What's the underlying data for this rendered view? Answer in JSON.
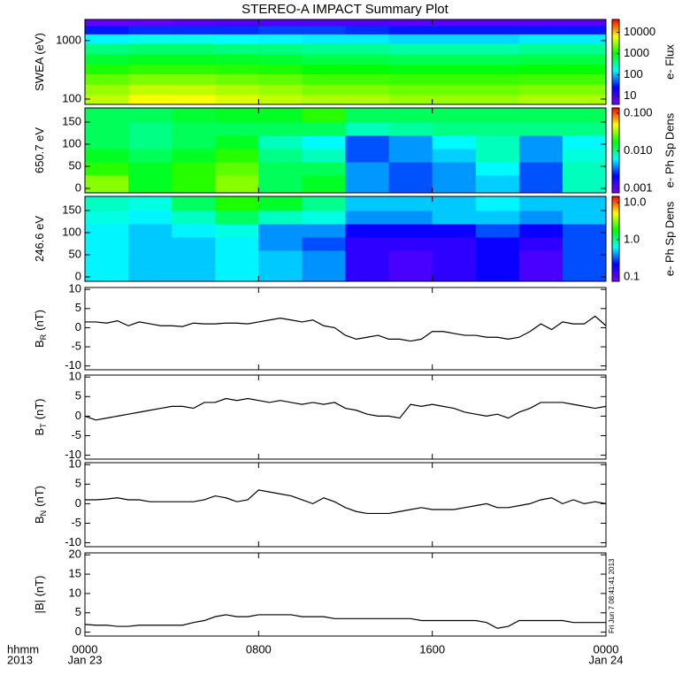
{
  "title": "STEREO-A IMPACT Summary Plot",
  "corner": [
    "hhmm",
    "2013"
  ],
  "timestamp": "Fri Jun  7 08:41:41 2013",
  "xlim": [
    0,
    24
  ],
  "xticks": [
    {
      "value": 0,
      "label": "0000"
    },
    {
      "value": 8,
      "label": "0800"
    },
    {
      "value": 16,
      "label": "1600"
    },
    {
      "value": 24,
      "label": "0000"
    }
  ],
  "xdates": [
    {
      "value": 0,
      "label": "Jan 23"
    },
    {
      "value": 24,
      "label": "Jan 24"
    }
  ],
  "time": [
    0,
    0.5,
    1,
    1.5,
    2,
    2.5,
    3,
    3.5,
    4,
    4.5,
    5,
    5.5,
    6,
    6.5,
    7,
    7.5,
    8,
    8.5,
    9,
    9.5,
    10,
    10.5,
    11,
    11.5,
    12,
    12.5,
    13,
    13.5,
    14,
    14.5,
    15,
    15.5,
    16,
    16.5,
    17,
    17.5,
    18,
    18.5,
    19,
    19.5,
    20,
    20.5,
    21,
    21.5,
    22,
    22.5,
    23,
    23.5,
    24
  ],
  "colorscale": [
    "#7f00ff",
    "#0000ff",
    "#00ffff",
    "#00ff00",
    "#ffff00",
    "#ff0000"
  ],
  "chart_data": [
    {
      "type": "heatmap",
      "ylabel": "SWEA (eV)",
      "ylog": true,
      "ylim": [
        81,
        2300
      ],
      "yticks": [
        100,
        1000
      ],
      "zlabel": "e- Flux",
      "zlog": true,
      "zlim": [
        4,
        40000
      ],
      "zticks": [
        10,
        100,
        1000,
        10000
      ],
      "x": [
        0,
        2,
        4,
        6,
        8,
        10,
        12,
        14,
        16,
        18,
        20,
        22,
        24
      ],
      "y": [
        81,
        120,
        180,
        270,
        400,
        600,
        900,
        1300,
        1800,
        2300
      ],
      "z": [
        [
          4000,
          6000,
          6000,
          5000,
          4000,
          3500,
          3500,
          3000,
          3000,
          3000,
          3500,
          3500
        ],
        [
          3000,
          4000,
          4000,
          3500,
          3000,
          2500,
          2500,
          2200,
          2200,
          2200,
          2500,
          2500
        ],
        [
          2000,
          2500,
          2500,
          2200,
          2000,
          1600,
          1600,
          1500,
          1500,
          1500,
          1600,
          1600
        ],
        [
          1200,
          1400,
          1400,
          1300,
          1200,
          1000,
          1000,
          900,
          900,
          900,
          1000,
          1000
        ],
        [
          700,
          800,
          800,
          750,
          700,
          600,
          600,
          550,
          550,
          550,
          600,
          600
        ],
        [
          400,
          450,
          450,
          400,
          400,
          350,
          350,
          300,
          300,
          300,
          350,
          350
        ],
        [
          150,
          180,
          180,
          160,
          150,
          140,
          140,
          120,
          120,
          120,
          140,
          140
        ],
        [
          30,
          35,
          35,
          35,
          40,
          40,
          35,
          30,
          30,
          30,
          30,
          30
        ],
        [
          6,
          6,
          7,
          8,
          8,
          8,
          8,
          7,
          7,
          7,
          7,
          7
        ]
      ]
    },
    {
      "type": "heatmap",
      "ylabel": "650.7 eV",
      "ylog": false,
      "ylim": [
        -10,
        182
      ],
      "yticks": [
        0,
        50,
        100,
        150
      ],
      "zlabel": "e- Ph Sp Dens",
      "zlog": true,
      "zlim": [
        0.00076,
        0.138
      ],
      "zticks": [
        {
          "value": 0.001,
          "label": "0.001"
        },
        {
          "value": 0.01,
          "label": "0.010"
        },
        {
          "value": 0.1,
          "label": "0.100"
        }
      ],
      "x": [
        0,
        2,
        4,
        6,
        8,
        10,
        12,
        14,
        16,
        18,
        20,
        22,
        24
      ],
      "y": [
        -10,
        30,
        60,
        90,
        120,
        150,
        182
      ],
      "z": [
        [
          0.03,
          0.015,
          0.02,
          0.03,
          0.012,
          0.015,
          0.004,
          0.003,
          0.004,
          0.005,
          0.003,
          0.008
        ],
        [
          0.02,
          0.015,
          0.02,
          0.025,
          0.012,
          0.012,
          0.004,
          0.003,
          0.004,
          0.006,
          0.003,
          0.008
        ],
        [
          0.015,
          0.012,
          0.015,
          0.02,
          0.01,
          0.008,
          0.003,
          0.004,
          0.005,
          0.008,
          0.004,
          0.007
        ],
        [
          0.012,
          0.01,
          0.012,
          0.015,
          0.008,
          0.006,
          0.003,
          0.004,
          0.006,
          0.008,
          0.004,
          0.006
        ],
        [
          0.012,
          0.01,
          0.012,
          0.012,
          0.012,
          0.012,
          0.008,
          0.009,
          0.01,
          0.01,
          0.01,
          0.01
        ],
        [
          0.012,
          0.012,
          0.014,
          0.015,
          0.015,
          0.02,
          0.012,
          0.012,
          0.012,
          0.012,
          0.012,
          0.012
        ]
      ]
    },
    {
      "type": "heatmap",
      "ylabel": "246.6 eV",
      "ylog": false,
      "ylim": [
        -10,
        182
      ],
      "yticks": [
        0,
        50,
        100,
        150
      ],
      "zlabel": "e- Ph Sp Dens",
      "zlog": true,
      "zlim": [
        0.076,
        14.7
      ],
      "zticks": [
        0.1,
        {
          "value": 1,
          "label": "1.0"
        },
        {
          "value": 10,
          "label": "10.0"
        }
      ],
      "x": [
        0,
        2,
        4,
        6,
        8,
        10,
        12,
        14,
        16,
        18,
        20,
        22,
        24
      ],
      "y": [
        -10,
        30,
        60,
        90,
        120,
        150,
        182
      ],
      "z": [
        [
          0.6,
          0.5,
          0.5,
          0.6,
          0.5,
          0.4,
          0.15,
          0.12,
          0.15,
          0.2,
          0.12,
          0.3
        ],
        [
          0.6,
          0.5,
          0.5,
          0.6,
          0.5,
          0.4,
          0.15,
          0.12,
          0.15,
          0.2,
          0.12,
          0.3
        ],
        [
          0.6,
          0.5,
          0.5,
          0.6,
          0.4,
          0.3,
          0.15,
          0.15,
          0.15,
          0.2,
          0.15,
          0.3
        ],
        [
          0.6,
          0.5,
          0.6,
          0.7,
          0.4,
          0.4,
          0.2,
          0.2,
          0.2,
          0.3,
          0.2,
          0.3
        ],
        [
          0.7,
          0.6,
          0.8,
          1.2,
          0.8,
          0.7,
          0.4,
          0.4,
          0.5,
          0.5,
          0.4,
          0.5
        ],
        [
          0.8,
          0.7,
          1.2,
          2,
          1.5,
          1,
          0.5,
          0.5,
          0.5,
          0.6,
          0.5,
          0.5
        ]
      ]
    },
    {
      "type": "line",
      "ylabel": "B",
      "ylabel_sub": "R",
      "ylabel_unit": "(nT)",
      "ylim": [
        -11,
        10.5
      ],
      "yticks": [
        -10,
        -5,
        0,
        5,
        10
      ],
      "color": "#000000",
      "values": [
        1.5,
        1.5,
        1.2,
        1.8,
        0.5,
        1.5,
        1,
        0.5,
        0.5,
        0.3,
        1.2,
        1,
        1,
        1.2,
        1.2,
        1,
        1.5,
        2,
        2.5,
        2,
        1.5,
        2,
        0.5,
        0,
        -2,
        -3,
        -2.5,
        -2,
        -3,
        -3,
        -3.5,
        -3,
        -1,
        -1,
        -1.5,
        -2,
        -2,
        -2.5,
        -2.5,
        -3,
        -2.5,
        -1,
        1,
        -0.5,
        1.5,
        1,
        1,
        3,
        0.5
      ]
    },
    {
      "type": "line",
      "ylabel": "B",
      "ylabel_sub": "T",
      "ylabel_unit": "(nT)",
      "ylim": [
        -11,
        10.5
      ],
      "yticks": [
        -10,
        -5,
        0,
        5,
        10
      ],
      "color": "#000000",
      "values": [
        0,
        -1,
        -0.5,
        0,
        0.5,
        1,
        1.5,
        2,
        2.5,
        2.5,
        2,
        3.5,
        3.5,
        4.5,
        4,
        4.5,
        4,
        3.5,
        4,
        3.5,
        3,
        3.5,
        3,
        3.5,
        2,
        1.5,
        0.5,
        0,
        0,
        -0.5,
        3,
        2.5,
        3,
        2.5,
        2,
        1,
        0.5,
        0,
        0.5,
        -0.5,
        1,
        2,
        3.5,
        3.5,
        3.5,
        3,
        2.5,
        2,
        2.5
      ]
    },
    {
      "type": "line",
      "ylabel": "B",
      "ylabel_sub": "N",
      "ylabel_unit": "(nT)",
      "ylim": [
        -11,
        10.5
      ],
      "yticks": [
        -10,
        -5,
        0,
        5,
        10
      ],
      "color": "#000000",
      "values": [
        1,
        1,
        1.2,
        1.5,
        1,
        1,
        0.5,
        0.5,
        0.5,
        0.5,
        0.5,
        1,
        2,
        1.5,
        0.5,
        1,
        3.5,
        3,
        2.5,
        2,
        1,
        0,
        1.5,
        0.5,
        -1,
        -2,
        -2.5,
        -2.5,
        -2.5,
        -2,
        -1.5,
        -1,
        -1.5,
        -1.5,
        -1.5,
        -1,
        -0.5,
        0,
        -1,
        -1,
        -0.5,
        0,
        1,
        1.5,
        0,
        1,
        0,
        0.5,
        0
      ]
    },
    {
      "type": "line",
      "ylabel": "|B| (nT)",
      "ylim": [
        -1,
        20.5
      ],
      "yticks": [
        0,
        5,
        10,
        15,
        20
      ],
      "color": "#000000",
      "values": [
        2,
        1.8,
        1.8,
        1.5,
        1.5,
        1.8,
        1.8,
        1.8,
        1.8,
        1.8,
        2.5,
        3,
        4,
        4.5,
        4,
        4,
        4.5,
        4.5,
        4.5,
        4.5,
        4,
        4,
        4,
        3.5,
        3.5,
        3.5,
        3.5,
        3.5,
        3.5,
        3.5,
        3.5,
        3,
        3,
        3,
        3,
        3,
        3,
        2.5,
        1,
        1.5,
        3,
        3,
        3,
        3,
        3,
        2.5,
        2.5,
        2.5,
        2.5
      ]
    }
  ]
}
